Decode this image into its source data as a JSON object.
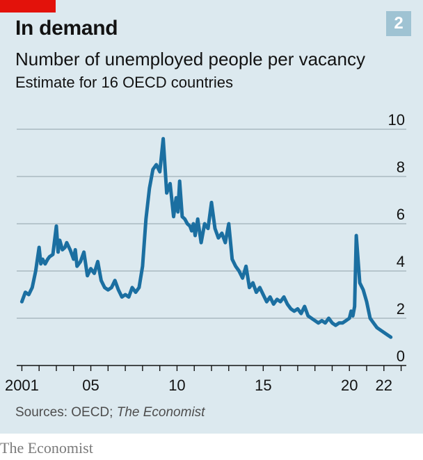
{
  "header": {
    "title": "In demand",
    "chart_number": "2",
    "subtitle": "Number of unemployed people per vacancy",
    "subtitle2": "Estimate for 16 OECD countries"
  },
  "footer": {
    "source_prefix": "Sources: OECD; ",
    "source_publication": "The Economist",
    "brand": "The Economist"
  },
  "colors": {
    "background": "#dce9ef",
    "line": "#1b6fa1",
    "accent": "#e3120b",
    "gridline": "#aab9c1"
  },
  "chart_data": {
    "type": "line",
    "title": "Number of unemployed people per vacancy",
    "subtitle": "Estimate for 16 OECD countries",
    "ylim": [
      0,
      10
    ],
    "yticks": [
      0,
      2,
      4,
      6,
      8,
      10
    ],
    "xlim": [
      2000.7,
      2023.3
    ],
    "xtick_values": [
      2001,
      2005,
      2010,
      2015,
      2020,
      2022
    ],
    "xtick_labels": [
      "2001",
      "05",
      "10",
      "15",
      "20",
      "22"
    ],
    "grid": true,
    "series": [
      {
        "x": [
          2001.0,
          2001.2,
          2001.4,
          2001.6,
          2001.8,
          2002.0,
          2002.1,
          2002.2,
          2002.35,
          2002.5,
          2002.6,
          2002.8,
          2003.0,
          2003.1,
          2003.2,
          2003.35,
          2003.5,
          2003.6,
          2003.8,
          2004.0,
          2004.1,
          2004.2,
          2004.4,
          2004.6,
          2004.8,
          2005.0,
          2005.2,
          2005.4,
          2005.6,
          2005.8,
          2006.0,
          2006.2,
          2006.4,
          2006.6,
          2006.8,
          2007.0,
          2007.2,
          2007.4,
          2007.6,
          2007.8,
          2008.0,
          2008.2,
          2008.4,
          2008.6,
          2008.8,
          2009.0,
          2009.2,
          2009.4,
          2009.6,
          2009.8,
          2009.95,
          2010.05,
          2010.15,
          2010.3,
          2010.45,
          2010.6,
          2010.75,
          2010.85,
          2010.95,
          2011.05,
          2011.2,
          2011.4,
          2011.6,
          2011.8,
          2012.0,
          2012.2,
          2012.4,
          2012.6,
          2012.8,
          2013.0,
          2013.2,
          2013.4,
          2013.6,
          2013.8,
          2014.0,
          2014.2,
          2014.4,
          2014.6,
          2014.8,
          2015.0,
          2015.2,
          2015.4,
          2015.6,
          2015.8,
          2016.0,
          2016.2,
          2016.4,
          2016.6,
          2016.8,
          2017.0,
          2017.2,
          2017.4,
          2017.6,
          2017.8,
          2018.0,
          2018.2,
          2018.4,
          2018.6,
          2018.8,
          2019.0,
          2019.2,
          2019.4,
          2019.6,
          2019.8,
          2020.0,
          2020.1,
          2020.2,
          2020.3,
          2020.4,
          2020.5,
          2020.6,
          2020.8,
          2021.0,
          2021.2,
          2021.4,
          2021.6,
          2021.8,
          2022.0,
          2022.2,
          2022.4
        ],
        "values": [
          2.7,
          3.1,
          3.0,
          3.3,
          4.0,
          5.0,
          4.3,
          4.5,
          4.3,
          4.5,
          4.6,
          4.7,
          5.9,
          4.8,
          5.3,
          4.9,
          5.0,
          5.2,
          4.9,
          4.5,
          4.9,
          4.2,
          4.4,
          4.8,
          3.8,
          4.1,
          3.9,
          4.4,
          3.6,
          3.3,
          3.2,
          3.3,
          3.6,
          3.2,
          2.9,
          3.0,
          2.9,
          3.3,
          3.1,
          3.3,
          4.2,
          6.2,
          7.5,
          8.3,
          8.5,
          8.2,
          9.6,
          7.3,
          7.7,
          6.3,
          7.1,
          6.5,
          7.8,
          6.3,
          6.2,
          6.0,
          5.9,
          5.7,
          6.0,
          5.5,
          6.2,
          5.2,
          6.0,
          5.8,
          6.9,
          5.8,
          5.4,
          5.6,
          5.2,
          6.0,
          4.5,
          4.2,
          4.0,
          3.7,
          4.2,
          3.3,
          3.5,
          3.1,
          3.3,
          3.0,
          2.7,
          2.9,
          2.6,
          2.8,
          2.7,
          2.9,
          2.6,
          2.4,
          2.3,
          2.4,
          2.2,
          2.5,
          2.1,
          2.0,
          1.9,
          1.8,
          1.9,
          1.8,
          2.0,
          1.8,
          1.7,
          1.8,
          1.8,
          1.9,
          2.0,
          2.3,
          2.1,
          2.5,
          5.5,
          4.5,
          3.5,
          3.2,
          2.7,
          2.0,
          1.8,
          1.6,
          1.5,
          1.4,
          1.3,
          1.2
        ]
      }
    ]
  }
}
